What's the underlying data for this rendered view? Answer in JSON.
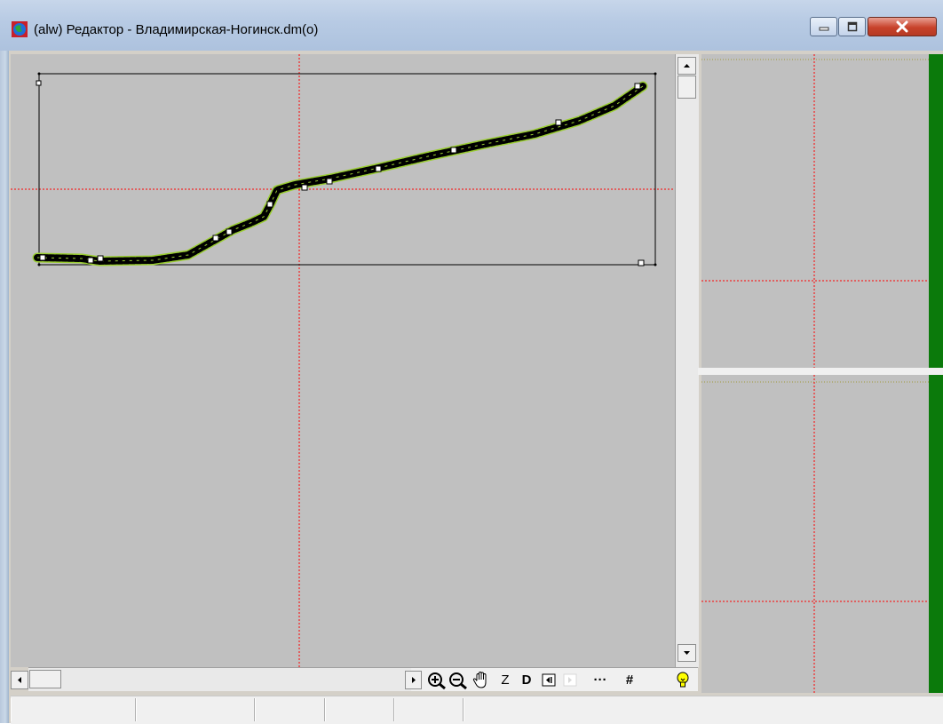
{
  "window": {
    "title": "(alw) Редактор - Владимирская-Ногинск.dm(o)",
    "app_icon": "globe-icon",
    "controls": [
      "minimize-icon",
      "maximize-icon",
      "close-icon"
    ]
  },
  "colors": {
    "canvas_bg": "#c0c0c0",
    "crosshair": "#ff0000",
    "track_outline": "#9acd32",
    "track_fill": "#000000",
    "frame": "#000000",
    "green_bar": "#0b7a0b",
    "dotted_line": "#a09a3a"
  },
  "toolbar": {
    "scroll_right_icon": "triangle-right-icon",
    "zoom_in_icon": "zoom-in-icon",
    "zoom_out_icon": "zoom-out-icon",
    "pan_icon": "hand-icon",
    "z_label": "Z",
    "d_label": "D",
    "frame_prev_icon": "frame-prev-icon",
    "frame_next_icon": "frame-next-icon",
    "dots_label": "···",
    "grid_label": "#",
    "bulb_icon": "lightbulb-icon"
  },
  "statusbar": {
    "panels": [
      "",
      "",
      "",
      "",
      "",
      ""
    ]
  }
}
